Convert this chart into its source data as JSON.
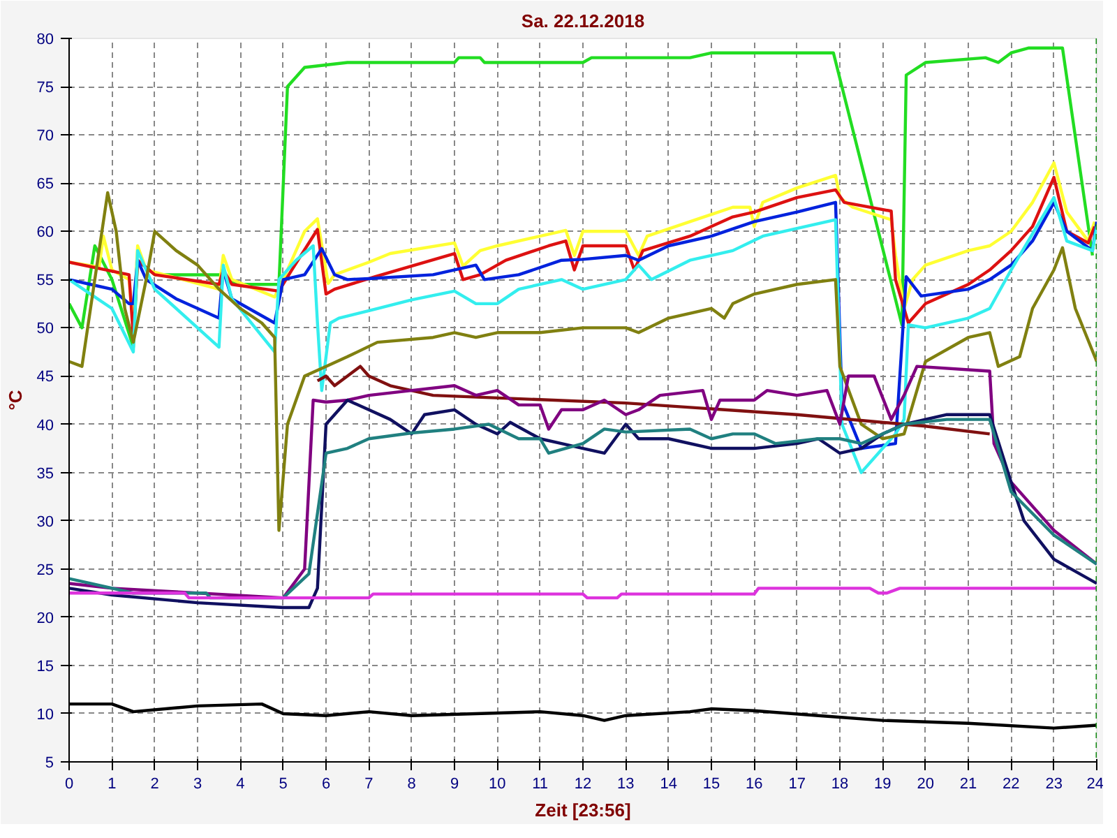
{
  "chart_data": {
    "type": "line",
    "title": "Sa. 22.12.2018",
    "xlabel": "Zeit [23:56]",
    "ylabel": "°C",
    "xlim": [
      0,
      24
    ],
    "ylim": [
      5,
      80
    ],
    "xticks": [
      0,
      1,
      2,
      3,
      4,
      5,
      6,
      7,
      8,
      9,
      10,
      11,
      12,
      13,
      14,
      15,
      16,
      17,
      18,
      19,
      20,
      21,
      22,
      23,
      24
    ],
    "yticks": [
      5,
      10,
      15,
      20,
      25,
      30,
      35,
      40,
      45,
      50,
      55,
      60,
      65,
      70,
      75,
      80
    ],
    "grid": true,
    "line_style": "solid",
    "ref_lines": [
      {
        "axis": "x",
        "value": 24,
        "label": null,
        "color": "#118811",
        "line_style": "dashed"
      }
    ],
    "series": [
      {
        "color": "#22dd22",
        "x": [
          0,
          0.3,
          0.6,
          1.0,
          1.5,
          1.6,
          2.0,
          2.5,
          3.6,
          3.9,
          4.9,
          5.1,
          5.5,
          6.5,
          9.0,
          9.1,
          9.6,
          9.7,
          12.0,
          12.2,
          14.5,
          15.0,
          17.85,
          19.45,
          19.55,
          20.0,
          21.4,
          21.7,
          22.0,
          22.4,
          23.2,
          23.9
        ],
        "values": [
          52.5,
          50,
          58.5,
          55,
          48,
          57,
          55.5,
          55.5,
          55.5,
          54.5,
          54.5,
          75,
          77,
          77.5,
          77.5,
          78,
          78,
          77.5,
          77.5,
          78,
          78,
          78.5,
          78.5,
          50.3,
          76.2,
          77.5,
          78,
          77.5,
          78.5,
          79,
          79,
          57.5
        ]
      },
      {
        "color": "#ffff33",
        "x": [
          0,
          0.7,
          0.8,
          1.0,
          1.4,
          1.5,
          1.6,
          1.8,
          3.5,
          3.6,
          3.8,
          4.8,
          5.0,
          5.5,
          5.8,
          6.05,
          6.2,
          7.0,
          7.5,
          9.0,
          9.2,
          9.6,
          10.0,
          11.0,
          11.6,
          11.8,
          12.0,
          13.0,
          13.3,
          13.5,
          14.5,
          15.5,
          15.9,
          16.0,
          16.2,
          17.0,
          17.9,
          18.0,
          18.3,
          19.2,
          19.3,
          19.5,
          19.7,
          20.0,
          21.0,
          21.5,
          22.0,
          22.5,
          23.0,
          23.3,
          23.8,
          23.95
        ],
        "values": [
          56.8,
          56.3,
          59.5,
          56,
          55,
          50,
          58.5,
          56,
          54,
          57.5,
          55,
          53.2,
          55,
          60,
          61.3,
          54.6,
          55.5,
          56.8,
          57.7,
          58.8,
          56.4,
          58,
          58.5,
          59.5,
          60.1,
          57.5,
          60,
          60,
          57.5,
          59.5,
          61,
          62.5,
          62.5,
          60.5,
          63,
          64.5,
          65.8,
          63.5,
          62.5,
          61.2,
          57.5,
          52,
          55,
          56.5,
          58,
          58.5,
          60,
          63,
          67.1,
          62,
          59,
          61
        ]
      },
      {
        "color": "#dd1111",
        "x": [
          0,
          1.4,
          1.5,
          1.6,
          2.0,
          3.5,
          3.6,
          3.8,
          4.9,
          5.2,
          5.8,
          6.0,
          6.2,
          7.15,
          9.0,
          9.2,
          9.6,
          10.2,
          11.2,
          11.6,
          11.8,
          12.0,
          13.0,
          13.2,
          13.4,
          14.5,
          15.5,
          16.0,
          17.0,
          17.9,
          18.1,
          19.2,
          19.3,
          19.6,
          20.0,
          21.0,
          21.5,
          22.0,
          22.5,
          23.0,
          23.3,
          23.8,
          23.95
        ],
        "values": [
          56.8,
          55.5,
          49,
          57,
          55.5,
          54.5,
          56,
          54.5,
          53.8,
          56,
          60.2,
          53.5,
          54,
          55.3,
          57.7,
          55,
          55.5,
          57,
          58.5,
          59,
          56,
          58.5,
          58.5,
          56,
          58,
          59.5,
          61.5,
          62,
          63.5,
          64.3,
          63,
          62.1,
          55,
          50.5,
          52.5,
          54.5,
          56,
          58,
          60.5,
          65.6,
          60,
          58.8,
          60.5
        ]
      },
      {
        "color": "#0022dd",
        "x": [
          0,
          0.5,
          1.0,
          1.4,
          1.5,
          1.6,
          1.8,
          2.5,
          3.5,
          3.6,
          3.8,
          4.8,
          5.0,
          5.5,
          5.9,
          6.2,
          6.5,
          7.0,
          8.5,
          9.5,
          9.7,
          10.5,
          11.5,
          12.0,
          13.0,
          13.3,
          14.0,
          15.0,
          16.0,
          17.0,
          17.9,
          18.05,
          18.5,
          19.3,
          19.55,
          19.9,
          21.0,
          21.5,
          22.0,
          22.5,
          23.0,
          23.3,
          23.9,
          24.0
        ],
        "values": [
          55,
          54.5,
          54,
          52.5,
          52.5,
          57,
          55,
          53,
          51,
          56,
          53,
          50.5,
          55,
          55.5,
          58.2,
          55.5,
          55,
          55.1,
          55.5,
          56.5,
          55,
          55.5,
          57,
          57.1,
          57.5,
          57,
          58.5,
          59.5,
          61,
          62,
          63,
          42.4,
          37.5,
          38,
          55.3,
          53.3,
          54,
          55,
          56.5,
          59,
          63,
          60,
          58,
          61
        ]
      },
      {
        "color": "#33eeee",
        "x": [
          0,
          0.5,
          1.0,
          1.5,
          1.6,
          2.0,
          3.5,
          3.6,
          3.8,
          4.8,
          4.9,
          5.3,
          5.7,
          5.8,
          5.9,
          6.1,
          6.3,
          7.2,
          8.0,
          9.0,
          9.5,
          10.0,
          10.5,
          11.5,
          12.0,
          13.0,
          13.3,
          13.6,
          14.5,
          15.5,
          16.2,
          17.9,
          18.05,
          18.5,
          19.3,
          19.5,
          19.6,
          20.0,
          21.0,
          21.5,
          22.0,
          23.0,
          23.3,
          23.9,
          24.0
        ],
        "values": [
          55,
          53.5,
          52,
          47.5,
          58,
          54,
          48,
          56.5,
          53,
          47.5,
          55,
          57,
          58.5,
          50.5,
          43.5,
          50.5,
          51,
          52,
          52.9,
          53.8,
          52.5,
          52.5,
          54,
          55,
          54,
          55,
          56.5,
          55,
          57,
          58,
          59.5,
          61.2,
          40,
          35,
          39,
          40.5,
          50.3,
          50,
          51,
          52,
          56,
          63.5,
          59,
          58,
          60.5
        ]
      },
      {
        "color": "#808010",
        "x": [
          0,
          0.3,
          0.5,
          0.9,
          1.1,
          1.3,
          1.5,
          1.8,
          2.0,
          2.5,
          3.0,
          3.5,
          4.0,
          4.5,
          4.8,
          4.9,
          5.1,
          5.5,
          6.0,
          6.5,
          7.2,
          8.5,
          9.0,
          9.5,
          10.0,
          11.0,
          12.0,
          13.0,
          13.3,
          14.0,
          15.0,
          15.3,
          15.5,
          16.0,
          17.0,
          17.9,
          18.0,
          18.5,
          19.0,
          19.5,
          20.0,
          21.0,
          21.5,
          21.7,
          22.2,
          22.5,
          23.0,
          23.2,
          23.5,
          24.0
        ],
        "values": [
          46.5,
          46,
          52,
          64,
          60,
          52,
          48.5,
          55,
          60,
          58,
          56.5,
          54,
          52,
          50.5,
          49,
          29,
          40,
          45,
          46,
          47,
          48.5,
          49,
          49.5,
          49,
          49.5,
          49.5,
          50,
          50,
          49.5,
          51,
          52,
          51,
          52.5,
          53.5,
          54.5,
          55,
          46,
          40,
          38.5,
          39,
          46.5,
          49,
          49.5,
          46,
          47,
          52,
          56,
          58.3,
          52,
          46.5
        ]
      },
      {
        "color": "#801010",
        "x": [
          5.8,
          6.0,
          6.2,
          6.5,
          6.8,
          7.0,
          7.5,
          8.5,
          13.0,
          17.0,
          20.0,
          21.5
        ],
        "values": [
          44.5,
          45,
          44,
          45,
          46,
          45,
          44,
          43,
          42.2,
          41,
          39.8,
          39
        ]
      },
      {
        "color": "#800080",
        "x": [
          0,
          1.0,
          3.0,
          5.0,
          5.5,
          5.7,
          6.0,
          6.5,
          7.0,
          8.0,
          9.0,
          9.5,
          10.0,
          10.5,
          11.0,
          11.2,
          11.5,
          12.0,
          12.5,
          13.0,
          13.3,
          13.8,
          14.8,
          15.0,
          15.2,
          16.0,
          16.3,
          17.0,
          17.7,
          18.0,
          18.2,
          18.8,
          19.2,
          19.5,
          19.8,
          21.5,
          21.6,
          22.0,
          23.0,
          24.0
        ],
        "values": [
          23.5,
          23,
          22.5,
          22,
          25,
          42.5,
          42.3,
          42.5,
          43,
          43.5,
          44,
          43,
          43.5,
          42,
          42,
          39.5,
          41.5,
          41.5,
          42.5,
          41,
          41.5,
          43,
          43.5,
          40.5,
          42.5,
          42.5,
          43.5,
          43,
          43.5,
          40,
          45,
          45,
          40.5,
          43,
          46,
          45.5,
          38,
          34,
          29,
          25.5
        ]
      },
      {
        "color": "#101060",
        "x": [
          0,
          1,
          3,
          5.0,
          5.6,
          5.8,
          6.0,
          6.5,
          7.0,
          7.5,
          8.0,
          8.3,
          9.0,
          9.5,
          10.0,
          10.3,
          11.0,
          11.5,
          12.0,
          12.5,
          13.0,
          13.3,
          14.0,
          15.0,
          16.0,
          17.0,
          17.5,
          18.0,
          18.5,
          19.0,
          19.5,
          20.0,
          20.5,
          21.5,
          22.0,
          22.3,
          23.0,
          24.0
        ],
        "values": [
          23,
          22.3,
          21.5,
          21,
          21,
          23,
          40,
          42.5,
          41.5,
          40.5,
          39,
          41,
          41.5,
          40,
          39,
          40.2,
          38.5,
          38,
          37.5,
          37,
          40,
          38.5,
          38.5,
          37.5,
          37.5,
          38,
          38.5,
          37,
          37.5,
          39,
          40,
          40.5,
          41,
          41,
          34,
          30,
          26,
          23.5
        ]
      },
      {
        "color": "#208080",
        "x": [
          0,
          0.5,
          1.5,
          3.2,
          3.3,
          5.0,
          5.6,
          6.0,
          6.5,
          7.0,
          8.0,
          9.0,
          9.8,
          10.5,
          11.0,
          11.2,
          12.0,
          12.5,
          13.0,
          14.5,
          15.0,
          15.5,
          16.0,
          16.5,
          17.5,
          18.0,
          18.5,
          19.0,
          19.5,
          20.5,
          21.5,
          22.0,
          23.0,
          24.0
        ],
        "values": [
          24,
          23.5,
          22.5,
          22.5,
          22,
          22,
          24.5,
          37,
          37.5,
          38.5,
          39.1,
          39.5,
          40,
          38.5,
          38.5,
          37,
          38,
          39.5,
          39.2,
          39.5,
          38.5,
          39,
          39,
          38,
          38.5,
          38.5,
          38,
          39,
          40,
          40.5,
          40.5,
          33,
          28.5,
          25.5
        ]
      },
      {
        "color": "#dd33dd",
        "x": [
          0,
          2.7,
          2.8,
          3.2,
          7.0,
          7.1,
          12.0,
          12.1,
          12.8,
          12.9,
          16.0,
          16.1,
          18.7,
          18.9,
          19.1,
          19.4,
          24.0
        ],
        "values": [
          22.5,
          22.5,
          22,
          22,
          22,
          22.4,
          22.4,
          22,
          22,
          22.4,
          22.4,
          23,
          23,
          22.5,
          22.5,
          23,
          23
        ]
      },
      {
        "color": "#000000",
        "x": [
          0,
          1,
          1.5,
          3.0,
          4.5,
          5.0,
          6.0,
          7.0,
          8.0,
          11.0,
          12.0,
          12.5,
          13.0,
          14.5,
          15.0,
          16.0,
          17.5,
          19.0,
          21.0,
          23.0,
          24.0
        ],
        "values": [
          11,
          11,
          10.2,
          10.8,
          11,
          10,
          9.8,
          10.2,
          9.8,
          10.2,
          9.8,
          9.3,
          9.8,
          10.2,
          10.5,
          10.3,
          9.8,
          9.3,
          9,
          8.5,
          8.8
        ]
      }
    ]
  }
}
